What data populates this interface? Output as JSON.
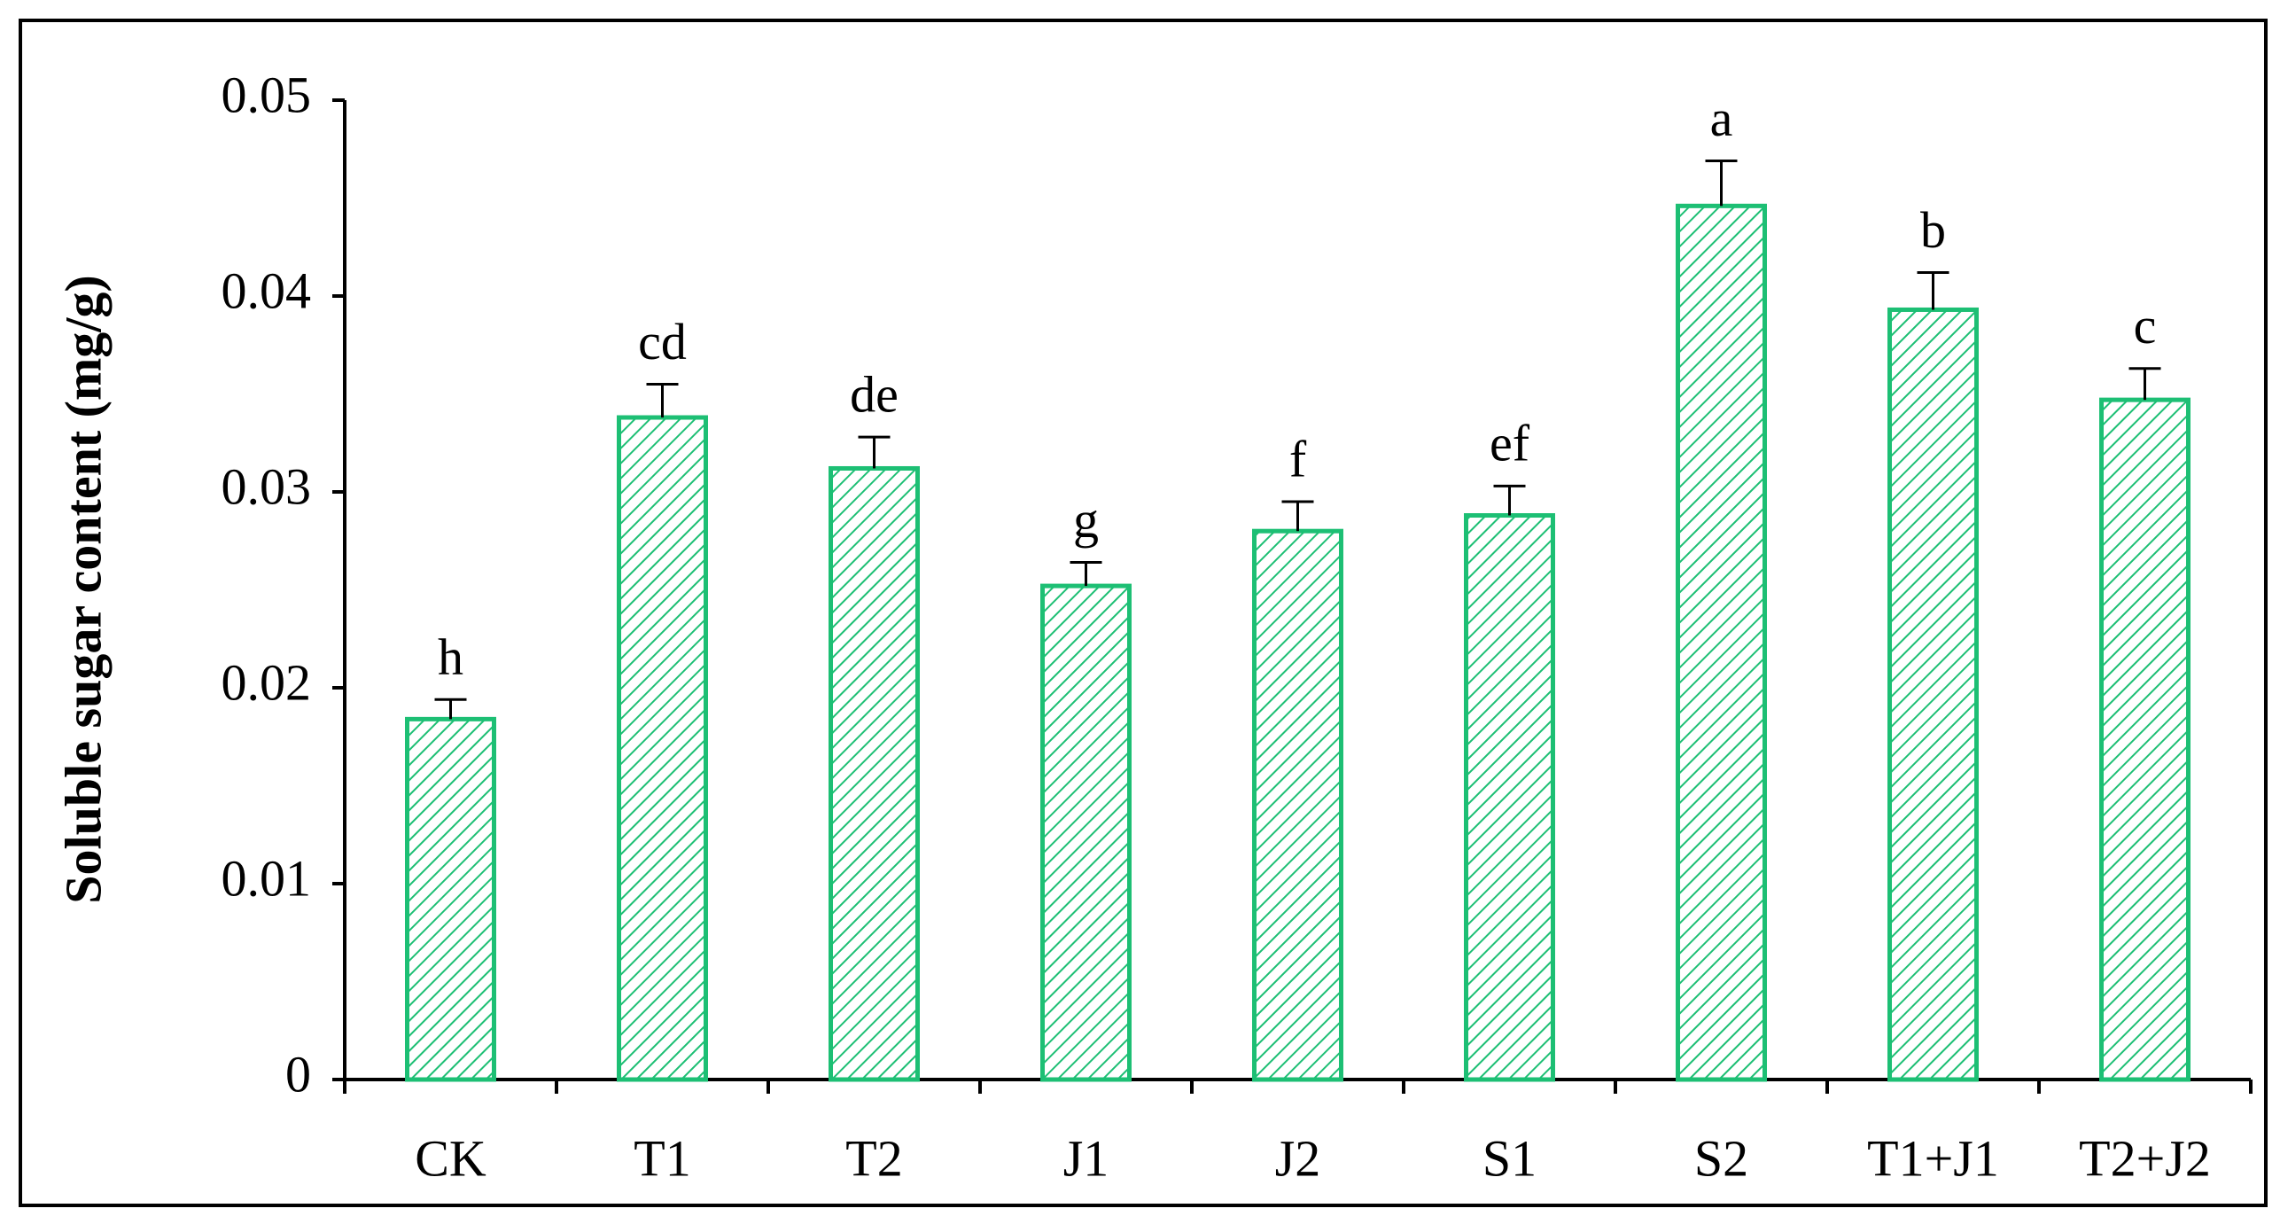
{
  "chart_data": {
    "type": "bar",
    "y_label": "Soluble sugar content (mg/g)",
    "categories": [
      "CK",
      "T1",
      "T2",
      "J1",
      "J2",
      "S1",
      "S2",
      "T1+J1",
      "T2+J2"
    ],
    "values": [
      0.0184,
      0.0338,
      0.0312,
      0.0252,
      0.028,
      0.0288,
      0.0446,
      0.0393,
      0.0347
    ],
    "errors": [
      0.001,
      0.0017,
      0.0016,
      0.0012,
      0.0015,
      0.0015,
      0.0023,
      0.0019,
      0.0016
    ],
    "annotations": [
      "h",
      "cd",
      "de",
      "g",
      "f",
      "ef",
      "a",
      "b",
      "c"
    ],
    "color": "#1dbf74",
    "ylim": [
      0,
      0.05
    ],
    "yticks": [
      0,
      0.01,
      0.02,
      0.03,
      0.04,
      0.05
    ]
  }
}
